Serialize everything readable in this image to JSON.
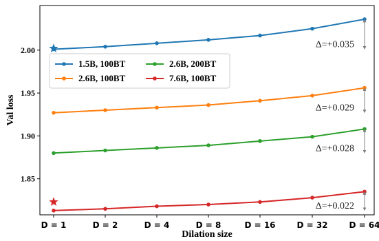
{
  "chart_data": {
    "type": "line",
    "xlabel": "Dilation size",
    "ylabel": "Val loss",
    "categories": [
      "D = 1",
      "D = 2",
      "D = 4",
      "D = 8",
      "D = 16",
      "D = 32",
      "D = 64"
    ],
    "ylim": [
      1.808,
      2.052
    ],
    "yticks": [
      "1.85",
      "1.90",
      "1.95",
      "2.00"
    ],
    "grid": false,
    "legend_position": "upper-left",
    "series": [
      {
        "name": "1.5B, 100BT",
        "color": "#1f77b4",
        "values": [
          2.001,
          2.004,
          2.008,
          2.012,
          2.017,
          2.025,
          2.036
        ]
      },
      {
        "name": "2.6B, 100BT",
        "color": "#ff7f0e",
        "values": [
          1.927,
          1.93,
          1.933,
          1.936,
          1.941,
          1.947,
          1.956
        ]
      },
      {
        "name": "2.6B, 200BT",
        "color": "#2ca02c",
        "values": [
          1.88,
          1.883,
          1.886,
          1.889,
          1.894,
          1.899,
          1.908
        ]
      },
      {
        "name": "7.6B, 100BT",
        "color": "#d62728",
        "values": [
          1.813,
          1.815,
          1.818,
          1.82,
          1.823,
          1.828,
          1.835
        ]
      }
    ],
    "stars": [
      {
        "series": "1.5B, 100BT",
        "x": "D = 1",
        "y": 2.002,
        "color": "#1f77b4"
      },
      {
        "series": "7.6B, 100BT",
        "x": "D = 1",
        "y": 1.823,
        "color": "#d62728"
      }
    ],
    "annotations": [
      {
        "text": "Δ=+0.035",
        "y_from": 2.001,
        "y_to": 2.036
      },
      {
        "text": "Δ=+0.029",
        "y_from": 1.927,
        "y_to": 1.956
      },
      {
        "text": "Δ=+0.028",
        "y_from": 1.88,
        "y_to": 1.908
      },
      {
        "text": "Δ=+0.022",
        "y_from": 1.813,
        "y_to": 1.835
      }
    ]
  }
}
